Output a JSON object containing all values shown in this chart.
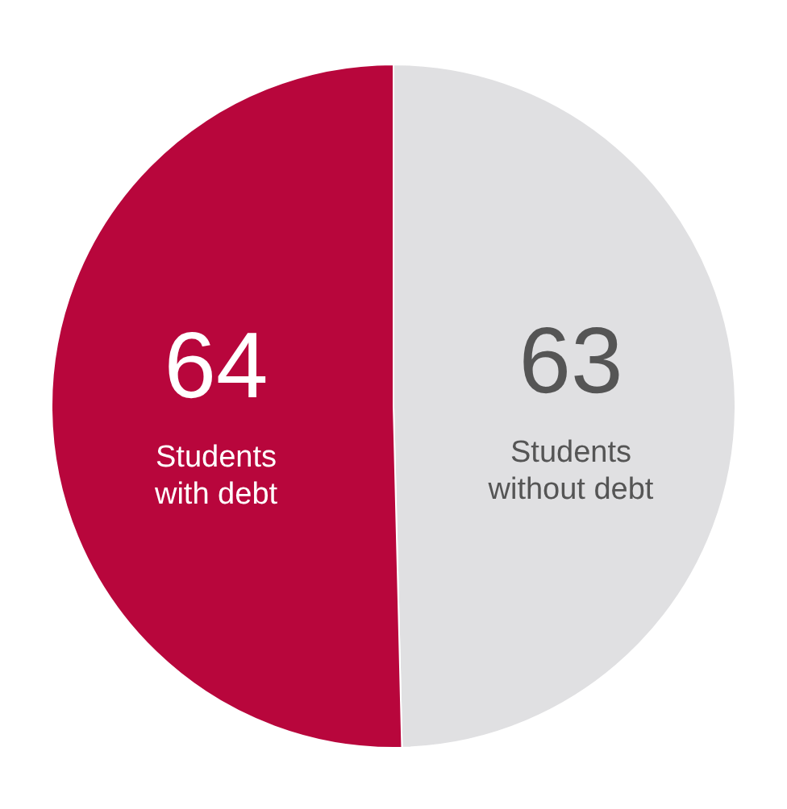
{
  "chart_data": {
    "type": "pie",
    "categories": [
      "Students without debt",
      "Students with debt"
    ],
    "values": [
      63,
      64
    ],
    "colors": [
      "#e0e0e2",
      "#b8063c"
    ],
    "data_labels": true,
    "legend": false
  }
}
